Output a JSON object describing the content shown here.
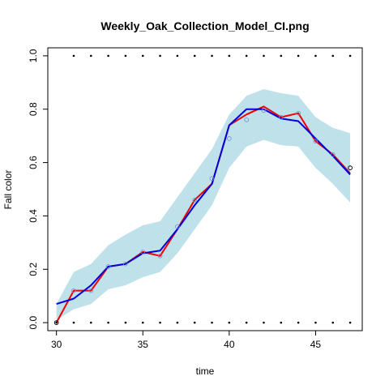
{
  "chart_data": {
    "type": "line",
    "title": "Weekly_Oak_Collection_Model_CI.png",
    "xlabel": "time",
    "ylabel": "Fall color",
    "xlim": [
      29.5,
      47.7
    ],
    "ylim": [
      -0.03,
      1.03
    ],
    "x_ticks": [
      30,
      35,
      40,
      45
    ],
    "y_ticks": [
      0.0,
      0.2,
      0.4,
      0.6,
      0.8,
      1.0
    ],
    "x_tick_labels": [
      "30",
      "35",
      "40",
      "45"
    ],
    "y_tick_labels": [
      "0.0",
      "0.2",
      "0.4",
      "0.6",
      "0.8",
      "1.0"
    ],
    "grid": false,
    "ci_band": {
      "x": [
        30,
        31,
        32,
        33,
        34,
        35,
        36,
        37,
        38,
        39,
        40,
        41,
        42,
        43,
        44,
        45,
        46,
        47
      ],
      "lower": [
        0.01,
        0.05,
        0.07,
        0.125,
        0.14,
        0.17,
        0.19,
        0.26,
        0.35,
        0.44,
        0.58,
        0.66,
        0.685,
        0.665,
        0.66,
        0.58,
        0.52,
        0.45
      ],
      "upper": [
        0.07,
        0.19,
        0.22,
        0.29,
        0.33,
        0.365,
        0.38,
        0.47,
        0.56,
        0.65,
        0.78,
        0.85,
        0.875,
        0.86,
        0.85,
        0.77,
        0.73,
        0.71
      ],
      "color": "#bfe1ea"
    },
    "series": [
      {
        "color": "#ee0000",
        "x": [
          30,
          31,
          32,
          33,
          34,
          35,
          36,
          37,
          38,
          39,
          40,
          41,
          42,
          43,
          44,
          45,
          46,
          47
        ],
        "values": [
          0.0,
          0.12,
          0.12,
          0.21,
          0.22,
          0.265,
          0.25,
          0.35,
          0.46,
          0.52,
          0.74,
          0.78,
          0.81,
          0.77,
          0.785,
          0.68,
          0.63,
          0.56
        ]
      },
      {
        "color": "#0000dd",
        "x": [
          30,
          31,
          32,
          33,
          34,
          35,
          36,
          37,
          38,
          39,
          40,
          41,
          42,
          43,
          44,
          45,
          46,
          47
        ],
        "values": [
          0.07,
          0.09,
          0.14,
          0.21,
          0.22,
          0.26,
          0.27,
          0.35,
          0.44,
          0.52,
          0.74,
          0.8,
          0.8,
          0.765,
          0.755,
          0.69,
          0.625,
          0.555
        ]
      }
    ],
    "open_points": {
      "color": "#6b8fd4",
      "x": [
        30,
        31,
        32,
        33,
        34,
        35,
        36,
        37,
        38,
        39,
        40,
        41,
        42,
        43,
        44,
        45,
        46,
        47
      ],
      "values": [
        0.0,
        0.12,
        0.12,
        0.21,
        0.22,
        0.265,
        0.25,
        0.36,
        0.46,
        0.54,
        0.69,
        0.76,
        0.795,
        0.77,
        0.785,
        0.68,
        0.63,
        0.58
      ]
    },
    "rug_top": {
      "x": [
        31,
        32,
        33,
        34,
        35,
        36,
        37,
        38,
        39,
        40,
        41,
        42,
        43,
        44,
        45,
        46,
        47
      ],
      "value": 1.0
    },
    "rug_bottom": {
      "x": [
        30,
        31,
        32,
        33,
        34,
        35,
        36,
        37,
        38,
        39,
        40,
        41,
        42,
        43,
        44,
        45,
        46,
        47
      ],
      "value": 0.0
    }
  }
}
